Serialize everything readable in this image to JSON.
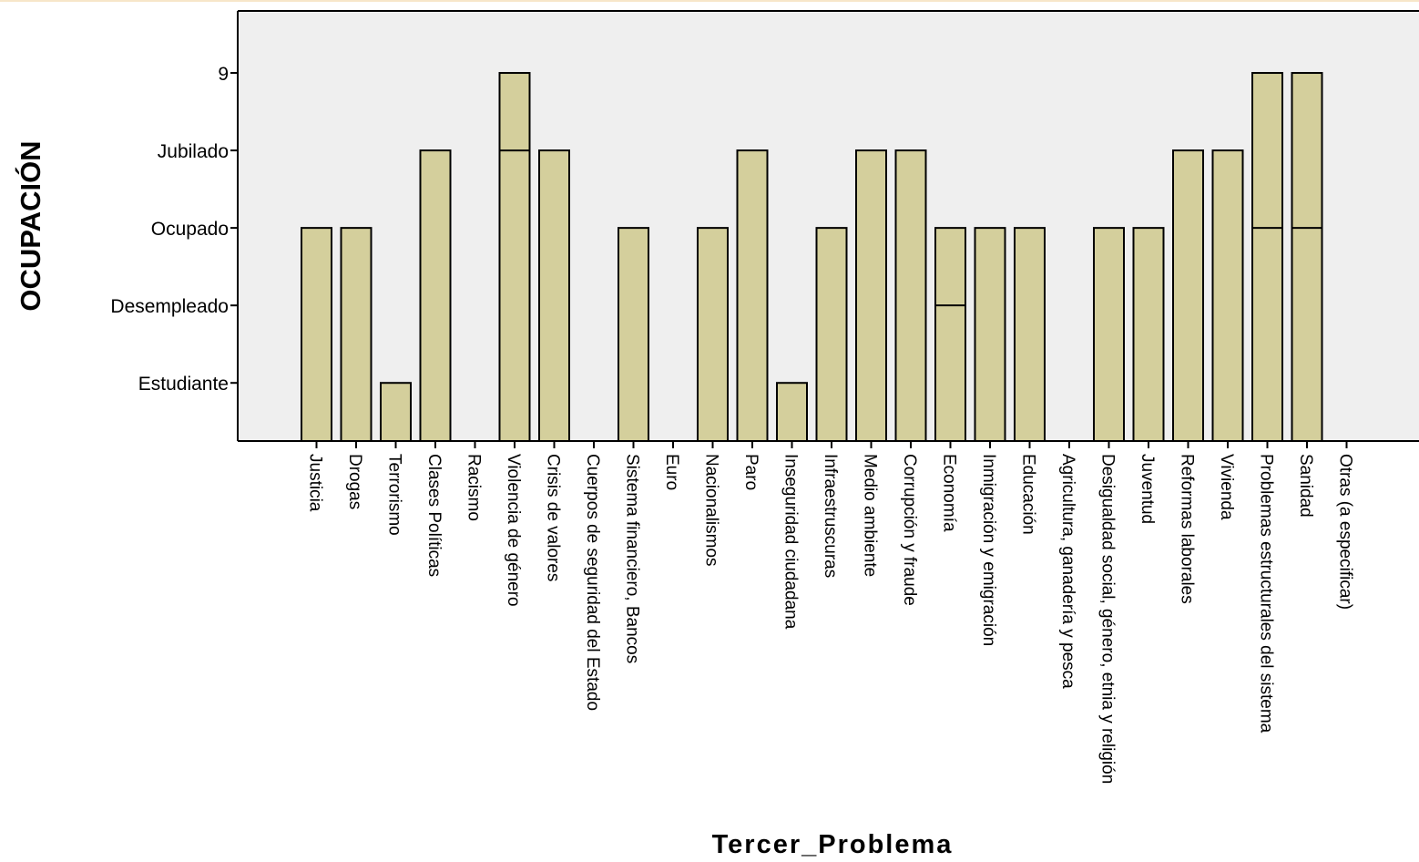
{
  "chart_data": {
    "type": "bar",
    "xlabel": "Tercer_Problema",
    "ylabel": "OCUPACIÓN",
    "y_levels": [
      "Estudiante",
      "Desempleado",
      "Ocupado",
      "Jubilado",
      "9"
    ],
    "y_level_values": [
      1,
      2,
      3,
      4,
      5
    ],
    "ylim": [
      0.25,
      5.8
    ],
    "categories": [
      "Justicia",
      "Drogas",
      "Terrorismo",
      "Clases Políticas",
      "Racismo",
      "Violencia de género",
      "Crisis de valores",
      "Cuerpos de seguridad del Estado",
      "Sistema financiero, Bancos",
      "Euro",
      "Nacionalismos",
      "Paro",
      "Inseguridad ciudadana",
      "Infraestruscuras",
      "Medio ambiente",
      "Corrupción y fraude",
      "Economía",
      "Inmigración y emigración",
      "Educación",
      "Agricultura, ganadería y pesca",
      "Desigualdad social, género, etnia y religión",
      "Juventud",
      "Reformas laborales",
      "Vivienda",
      "Problemas estructurales del sistema",
      "Sanidad",
      "Otras (a especificar)"
    ],
    "values": [
      3,
      3,
      1,
      4,
      null,
      5,
      4,
      null,
      3,
      null,
      3,
      4,
      1,
      3,
      4,
      4,
      3,
      3,
      3,
      null,
      3,
      3,
      4,
      4,
      5,
      5,
      null
    ],
    "segment_breaks": [
      [],
      [],
      [],
      [],
      [],
      [
        4
      ],
      [],
      [],
      [],
      [],
      [],
      [],
      [],
      [],
      [],
      [],
      [
        2
      ],
      [],
      [],
      [],
      [],
      [],
      [],
      [],
      [
        3
      ],
      [
        3
      ],
      []
    ],
    "bar_color": "#d4cf9c",
    "plot_background": "#efefef",
    "grid": false,
    "legend": "none"
  }
}
